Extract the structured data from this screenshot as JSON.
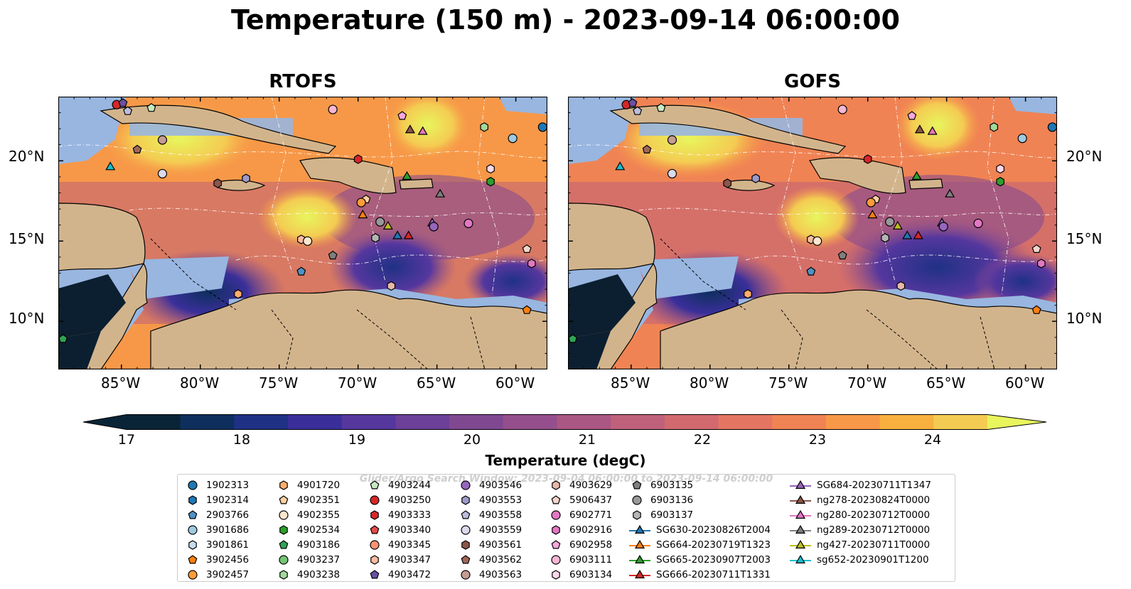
{
  "title": "Temperature (150 m) - 2023-09-14 06:00:00",
  "panels": [
    {
      "title": "RTOFS"
    },
    {
      "title": "GOFS"
    }
  ],
  "lon_ticks": [
    "85°W",
    "80°W",
    "75°W",
    "70°W",
    "65°W",
    "60°W"
  ],
  "lat_ticks": [
    "20°N",
    "15°N",
    "10°N"
  ],
  "colorbar": {
    "label": "Temperature (degC)",
    "ticks": [
      "17",
      "18",
      "19",
      "20",
      "21",
      "22",
      "23",
      "24"
    ],
    "min": 17,
    "max": 24.5,
    "step": 0.5,
    "colors": [
      "#082436",
      "#0e2f5e",
      "#1f3184",
      "#3a2f9a",
      "#55379e",
      "#6c3f98",
      "#814892",
      "#954f8c",
      "#ab5783",
      "#bf617a",
      "#d1696f",
      "#e47563",
      "#f08354",
      "#f79848",
      "#f8b03f",
      "#f4cb52"
    ],
    "extend_max_color": "#e8f55d"
  },
  "watermark": "Glider/Argo Search Window: 2023-09-04 06:00:00 to 2023-09-14 06:00:00",
  "legend": {
    "columns": [
      [
        {
          "label": "1902313",
          "marker": "circle",
          "color": "#1f77b4"
        },
        {
          "label": "1902314",
          "marker": "hexagon",
          "color": "#1f77b4"
        },
        {
          "label": "2903766",
          "marker": "pentagon",
          "color": "#4e92c4"
        },
        {
          "label": "3901686",
          "marker": "circle",
          "color": "#9ecae1"
        },
        {
          "label": "3901861",
          "marker": "hexagon",
          "color": "#c6dbef"
        },
        {
          "label": "3902456",
          "marker": "pentagon",
          "color": "#ff7f0e"
        },
        {
          "label": "3902457",
          "marker": "circle",
          "color": "#ff9c3a"
        }
      ],
      [
        {
          "label": "4901720",
          "marker": "hexagon",
          "color": "#fdae6b"
        },
        {
          "label": "4902351",
          "marker": "pentagon",
          "color": "#fdd0a2"
        },
        {
          "label": "4902355",
          "marker": "circle",
          "color": "#fee6ce"
        },
        {
          "label": "4902534",
          "marker": "hexagon",
          "color": "#2ca02c"
        },
        {
          "label": "4903186",
          "marker": "pentagon",
          "color": "#31a354"
        },
        {
          "label": "4903237",
          "marker": "circle",
          "color": "#74c476"
        },
        {
          "label": "4903238",
          "marker": "hexagon",
          "color": "#a1d99b"
        }
      ],
      [
        {
          "label": "4903244",
          "marker": "pentagon",
          "color": "#c7e9c0"
        },
        {
          "label": "4903250",
          "marker": "circle",
          "color": "#d62728"
        },
        {
          "label": "4903333",
          "marker": "hexagon",
          "color": "#d62728"
        },
        {
          "label": "4903340",
          "marker": "pentagon",
          "color": "#e34a4a"
        },
        {
          "label": "4903345",
          "marker": "circle",
          "color": "#fc9272"
        },
        {
          "label": "4903347",
          "marker": "hexagon",
          "color": "#fcbba1"
        },
        {
          "label": "4903472",
          "marker": "pentagon",
          "color": "#6a51a3"
        }
      ],
      [
        {
          "label": "4903546",
          "marker": "circle",
          "color": "#9467bd"
        },
        {
          "label": "4903553",
          "marker": "hexagon",
          "color": "#9e9ac8"
        },
        {
          "label": "4903558",
          "marker": "pentagon",
          "color": "#bcbddc"
        },
        {
          "label": "4903559",
          "marker": "circle",
          "color": "#dadaeb"
        },
        {
          "label": "4903561",
          "marker": "hexagon",
          "color": "#8c564b"
        },
        {
          "label": "4903562",
          "marker": "pentagon",
          "color": "#a0665a"
        },
        {
          "label": "4903563",
          "marker": "circle",
          "color": "#c49c94"
        }
      ],
      [
        {
          "label": "4903629",
          "marker": "hexagon",
          "color": "#e7b9ab"
        },
        {
          "label": "5906437",
          "marker": "pentagon",
          "color": "#f2d5cc"
        },
        {
          "label": "6902771",
          "marker": "circle",
          "color": "#e377c2"
        },
        {
          "label": "6902916",
          "marker": "hexagon",
          "color": "#e377c2"
        },
        {
          "label": "6902958",
          "marker": "pentagon",
          "color": "#f7a8dc"
        },
        {
          "label": "6903111",
          "marker": "circle",
          "color": "#f7b6d2"
        },
        {
          "label": "6903134",
          "marker": "hexagon",
          "color": "#fbd7ea"
        }
      ],
      [
        {
          "label": "6903135",
          "marker": "pentagon",
          "color": "#7f7f7f"
        },
        {
          "label": "6903136",
          "marker": "circle",
          "color": "#999999"
        },
        {
          "label": "6903137",
          "marker": "hexagon",
          "color": "#b5b5b5"
        },
        {
          "label": "SG630-20230826T2004",
          "marker": "triangle",
          "color": "#1f77b4",
          "line": true
        },
        {
          "label": "SG664-20230719T1323",
          "marker": "triangle",
          "color": "#ff7f0e",
          "line": true
        },
        {
          "label": "SG665-20230907T2003",
          "marker": "triangle",
          "color": "#2ca02c",
          "line": true
        },
        {
          "label": "SG666-20230711T1331",
          "marker": "triangle",
          "color": "#d62728",
          "line": true
        }
      ],
      [
        {
          "label": "SG684-20230711T1347",
          "marker": "triangle",
          "color": "#9467bd",
          "line": true
        },
        {
          "label": "ng278-20230824T0000",
          "marker": "triangle",
          "color": "#8c564b",
          "line": true
        },
        {
          "label": "ng280-20230712T0000",
          "marker": "triangle",
          "color": "#e377c2",
          "line": true
        },
        {
          "label": "ng289-20230712T0000",
          "marker": "triangle",
          "color": "#7f7f7f",
          "line": true
        },
        {
          "label": "ng427-20230711T0000",
          "marker": "triangle",
          "color": "#bcbd22",
          "line": true
        },
        {
          "label": "sg652-20230901T1200",
          "marker": "triangle",
          "color": "#17becf",
          "line": true
        }
      ]
    ]
  },
  "map_extent": {
    "lon": [
      -89,
      -58
    ],
    "lat": [
      7,
      24
    ]
  },
  "platforms": [
    {
      "id": "4903250",
      "lon": -85.3,
      "lat": 23.5
    },
    {
      "id": "4903472",
      "lon": -84.9,
      "lat": 23.6
    },
    {
      "id": "4903558",
      "lon": -84.6,
      "lat": 23.1
    },
    {
      "id": "4903244",
      "lon": -83.1,
      "lat": 23.3
    },
    {
      "id": "4903563",
      "lon": -82.4,
      "lat": 21.3
    },
    {
      "id": "4903562",
      "lon": -84.0,
      "lat": 20.7
    },
    {
      "id": "sg652-20230901T1200",
      "lon": -85.7,
      "lat": 19.6
    },
    {
      "id": "4903559",
      "lon": -82.4,
      "lat": 19.2
    },
    {
      "id": "4903561",
      "lon": -78.9,
      "lat": 18.6
    },
    {
      "id": "4903553",
      "lon": -77.1,
      "lat": 18.9
    },
    {
      "id": "6903111",
      "lon": -71.6,
      "lat": 23.2
    },
    {
      "id": "4903333",
      "lon": -70.0,
      "lat": 20.1
    },
    {
      "id": "6902958",
      "lon": -67.2,
      "lat": 22.8
    },
    {
      "id": "ng278-20230824T0000",
      "lon": -66.7,
      "lat": 21.9
    },
    {
      "id": "ng280-20230712T0000",
      "lon": -65.9,
      "lat": 21.8
    },
    {
      "id": "3901686",
      "lon": -60.2,
      "lat": 21.4
    },
    {
      "id": "1902313",
      "lon": -58.3,
      "lat": 22.1
    },
    {
      "id": "4903238",
      "lon": -62.0,
      "lat": 22.1
    },
    {
      "id": "6903134",
      "lon": -61.6,
      "lat": 19.5
    },
    {
      "id": "SG665-20230907T2003",
      "lon": -66.9,
      "lat": 19.0
    },
    {
      "id": "4902534",
      "lon": -61.6,
      "lat": 18.7
    },
    {
      "id": "ng289-20230712T0000",
      "lon": -64.8,
      "lat": 17.9
    },
    {
      "id": "4902351",
      "lon": -69.5,
      "lat": 17.6
    },
    {
      "id": "3902457",
      "lon": -69.8,
      "lat": 17.4
    },
    {
      "id": "SG664-20230719T1323",
      "lon": -69.7,
      "lat": 16.6
    },
    {
      "id": "6903136",
      "lon": -68.6,
      "lat": 16.2
    },
    {
      "id": "ng427-20230711T0000",
      "lon": -68.1,
      "lat": 15.9
    },
    {
      "id": "6903137",
      "lon": -68.9,
      "lat": 15.2
    },
    {
      "id": "SG630-20230826T2004",
      "lon": -67.5,
      "lat": 15.3
    },
    {
      "id": "SG666-20230711T1331",
      "lon": -66.8,
      "lat": 15.3
    },
    {
      "id": "SG684-20230711T1347",
      "lon": -65.3,
      "lat": 16.1
    },
    {
      "id": "4903546",
      "lon": -65.2,
      "lat": 15.9
    },
    {
      "id": "6902771",
      "lon": -63.0,
      "lat": 16.1
    },
    {
      "id": "4903347",
      "lon": -73.6,
      "lat": 15.1
    },
    {
      "id": "4902355",
      "lon": -73.2,
      "lat": 15.0
    },
    {
      "id": "6903135",
      "lon": -71.6,
      "lat": 14.1
    },
    {
      "id": "2903766",
      "lon": -73.6,
      "lat": 13.1
    },
    {
      "id": "4901720",
      "lon": -77.6,
      "lat": 11.7
    },
    {
      "id": "4903629",
      "lon": -67.9,
      "lat": 12.2
    },
    {
      "id": "6902916",
      "lon": -59.0,
      "lat": 13.6
    },
    {
      "id": "5906437",
      "lon": -59.3,
      "lat": 14.5
    },
    {
      "id": "3902456",
      "lon": -59.3,
      "lat": 10.7
    },
    {
      "id": "4903186",
      "lon": -88.7,
      "lat": 8.9
    }
  ]
}
